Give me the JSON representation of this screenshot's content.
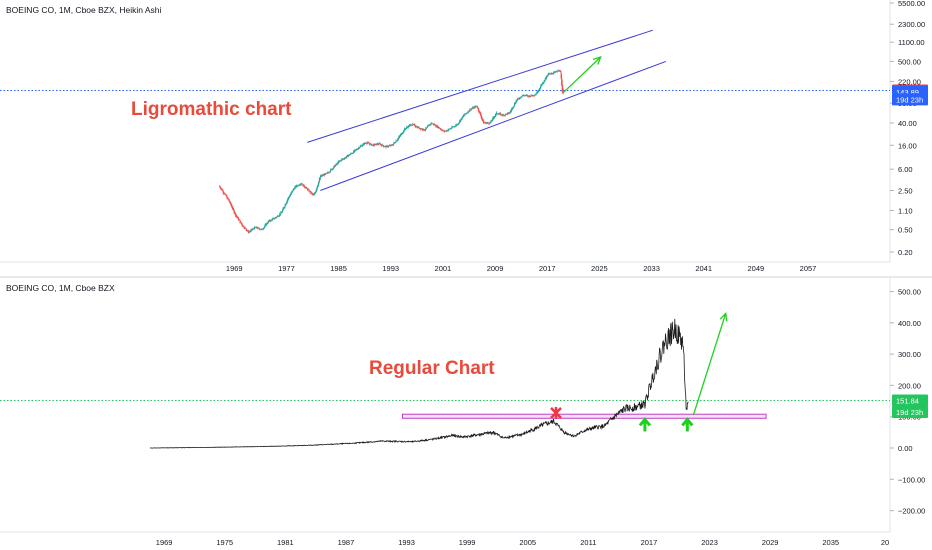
{
  "top_panel": {
    "symbol_label": "BOEING CO, 1M, Cboe BZX, Heikin Ashi",
    "annotation": "Ligromathic chart",
    "price_badges": [
      {
        "value": 151.84,
        "text": "151.84",
        "color": "#f23645"
      },
      {
        "value": 143.89,
        "text": "143.89",
        "color": "#2962ff"
      },
      {
        "value": 105,
        "text": "19d 23h",
        "color": "#2962ff"
      }
    ]
  },
  "bottom_panel": {
    "symbol_label": "BOEING CO, 1M, Cboe BZX",
    "annotation": "Regular Chart",
    "price_badges": [
      {
        "value": 151.84,
        "text": "151.84",
        "color": "#22c55e"
      },
      {
        "value": 115,
        "text": "19d 23h",
        "color": "#22c55e"
      }
    ]
  },
  "chart_data": [
    {
      "type": "candlestick",
      "scale": "log",
      "title": "BOEING CO, 1M, Cboe BZX, Heikin Ashi",
      "x_tick_labels": [
        "1969",
        "1977",
        "1985",
        "1993",
        "2001",
        "2009",
        "2017",
        "2025",
        "2033",
        "2041",
        "2049",
        "2057"
      ],
      "y_tick_labels": [
        "0.20",
        "0.50",
        "1.10",
        "2.50",
        "6.00",
        "16.00",
        "40.00",
        "90.00",
        "220.00",
        "500.00",
        "1100.00",
        "2300.00",
        "5500.00"
      ],
      "ylim": [
        0.15,
        5500
      ],
      "annotation": "Ligromathic chart",
      "series": [
        {
          "x": [
            1967.5,
            1969,
            1970,
            1971,
            1972,
            1973,
            1974,
            1975,
            1976,
            1977,
            1978,
            1979,
            1980,
            1981,
            1982,
            1983,
            1984,
            1985,
            1986,
            1987,
            1988,
            1989,
            1990,
            1991,
            1992,
            1993,
            1994,
            1995,
            1996,
            1997,
            1998,
            1999,
            2000,
            2001,
            2002,
            2003,
            2004,
            2005,
            2006,
            2007,
            2008,
            2009,
            2010,
            2011,
            2012,
            2013,
            2014,
            2015,
            2016,
            2017,
            2018,
            2019,
            2019.8,
            2020.1,
            2020.3
          ],
          "values": [
            3.0,
            1.6,
            0.9,
            0.6,
            0.45,
            0.55,
            0.5,
            0.7,
            0.8,
            1.0,
            1.8,
            2.8,
            3.4,
            2.6,
            2.0,
            4.5,
            5.0,
            6.5,
            8.5,
            10,
            12,
            15,
            18,
            16,
            17,
            15,
            16,
            22,
            32,
            38,
            33,
            30,
            40,
            34,
            28,
            32,
            38,
            55,
            70,
            80,
            40,
            40,
            60,
            55,
            60,
            100,
            125,
            120,
            130,
            200,
            300,
            320,
            350,
            130,
            140
          ]
        }
      ],
      "trend_channel": {
        "upper": {
          "from": {
            "x": 1981,
            "y": 18
          },
          "to": {
            "x": 2034,
            "y": 1800
          }
        },
        "lower": {
          "from": {
            "x": 1983,
            "y": 2.5
          },
          "to": {
            "x": 2036,
            "y": 500
          }
        }
      },
      "horizontal_line": 151.84,
      "projection_arrow": {
        "from": {
          "x": 2020.3,
          "y": 140
        },
        "to": {
          "x": 2026,
          "y": 600
        }
      }
    },
    {
      "type": "line",
      "scale": "linear",
      "title": "BOEING CO, 1M, Cboe BZX",
      "x_tick_labels": [
        "1969",
        "1975",
        "1981",
        "1987",
        "1993",
        "1999",
        "2005",
        "2011",
        "2017",
        "2023",
        "2029",
        "2035",
        "20"
      ],
      "y_tick_labels": [
        "500.00",
        "400.00",
        "300.00",
        "200.00",
        "100.00",
        "0.00",
        "−100.00",
        "−200.00"
      ],
      "ylim": [
        -240,
        540
      ],
      "annotation": "Regular Chart",
      "series": [
        {
          "x": [
            1967,
            1970,
            1975,
            1980,
            1983,
            1987,
            1990,
            1993,
            1995,
            1997,
            1998,
            2000,
            2001,
            2002,
            2003,
            2004,
            2005,
            2006,
            2007,
            2008,
            2009,
            2010,
            2011,
            2012,
            2013,
            2014,
            2015,
            2016,
            2017,
            2018,
            2019,
            2019.5,
            2019.8,
            2020.1,
            2020.3
          ],
          "values": [
            0,
            1,
            3,
            6,
            9,
            15,
            22,
            20,
            28,
            40,
            35,
            45,
            50,
            32,
            38,
            45,
            60,
            75,
            85,
            50,
            38,
            55,
            65,
            70,
            100,
            125,
            130,
            140,
            250,
            340,
            380,
            350,
            330,
            120,
            140
          ]
        }
      ],
      "support_zone": {
        "x_from": 1992,
        "x_to": 2028,
        "y_from": 95,
        "y_to": 108
      },
      "horizontal_line": 151.84,
      "markers": [
        {
          "kind": "red-x",
          "x": 2007.2,
          "y": 112
        },
        {
          "kind": "green-up",
          "x": 2016.0,
          "y": 72
        },
        {
          "kind": "green-up",
          "x": 2020.2,
          "y": 72
        }
      ],
      "projection_arrow": {
        "from": {
          "x": 2020.8,
          "y": 105
        },
        "to": {
          "x": 2024,
          "y": 430
        }
      }
    }
  ]
}
